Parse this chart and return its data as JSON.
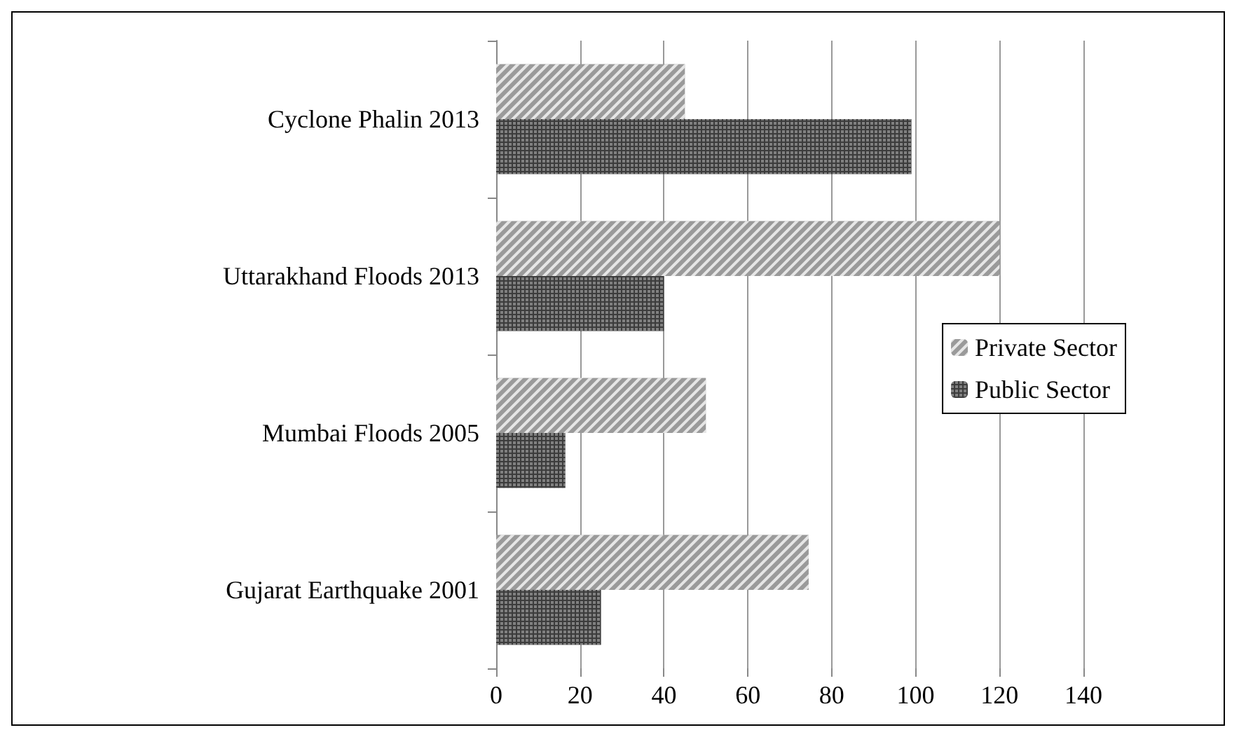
{
  "chart_data": {
    "type": "bar",
    "orientation": "horizontal",
    "categories": [
      "Cyclone Phalin 2013",
      "Uttarakhand Floods 2013",
      "Mumbai Floods 2005",
      "Gujarat Earthquake 2001"
    ],
    "series": [
      {
        "name": "Private Sector",
        "color": "#9a9a9a",
        "values": [
          45,
          120,
          50,
          74.5
        ]
      },
      {
        "name": "Public Sector",
        "color": "#3c3c3c",
        "values": [
          99,
          40,
          16.5,
          25
        ]
      }
    ],
    "xlim": [
      0,
      140
    ],
    "xticks": [
      0,
      20,
      40,
      60,
      80,
      100,
      120,
      140
    ],
    "grid": "x",
    "legend": "right"
  }
}
